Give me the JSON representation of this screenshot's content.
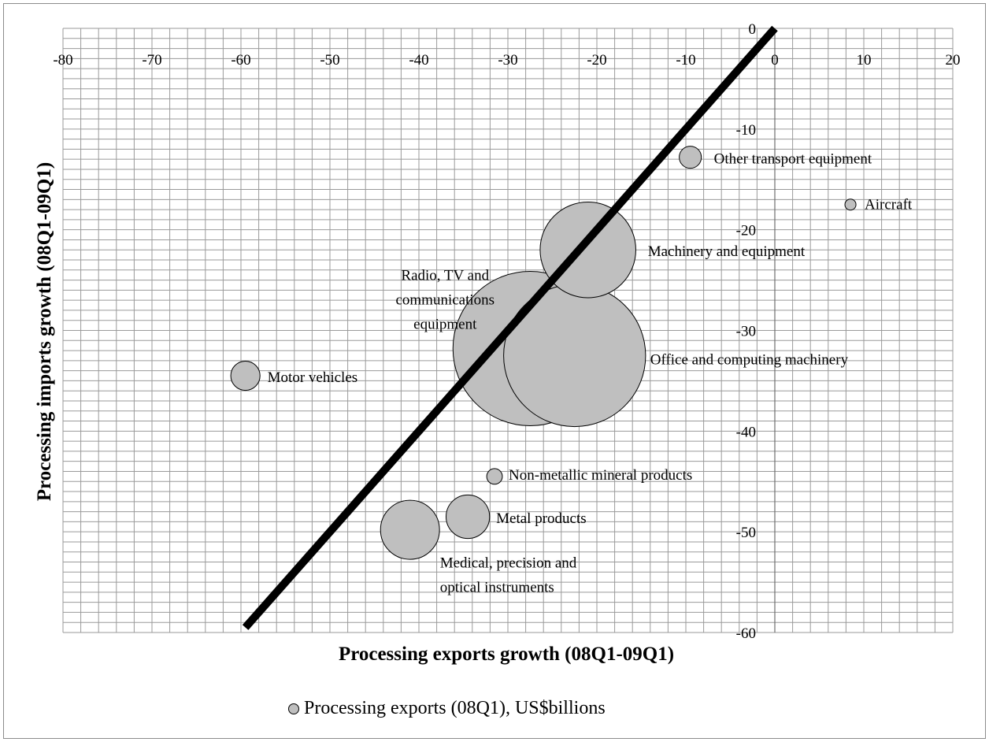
{
  "chart_data": {
    "type": "scatter",
    "subtype": "bubble",
    "xlabel": "Processing exports growth  (08Q1-09Q1)",
    "ylabel": "Processing imports  growth  (08Q1-09Q1)",
    "xlim": [
      -80,
      20
    ],
    "ylim": [
      -60,
      0
    ],
    "x_ticks": [
      "-80",
      "-70",
      "-60",
      "-50",
      "-40",
      "-30",
      "-20",
      "-10",
      "0",
      "10",
      "20"
    ],
    "y_ticks": [
      "0",
      "-10",
      "-20",
      "-30",
      "-40",
      "-50",
      "-60"
    ],
    "x_tick_values": [
      -80,
      -70,
      -60,
      -50,
      -40,
      -30,
      -20,
      -10,
      0,
      10,
      20
    ],
    "y_tick_values": [
      0,
      -10,
      -20,
      -30,
      -40,
      -50,
      -60
    ],
    "grid": true,
    "series": [
      {
        "name": "Processing exports (08Q1), US$billions",
        "color": "#bfbfbf",
        "points": [
          {
            "label": "Other transport equipment",
            "x": -9.5,
            "y": -12.8,
            "size": 0.8
          },
          {
            "label": "Aircraft",
            "x": 8.5,
            "y": -17.5,
            "size": 0.2
          },
          {
            "label": "Machinery and equipment",
            "x": -21,
            "y": -22,
            "size": 15
          },
          {
            "label": "Office  and computing machinery",
            "x": -22.5,
            "y": -32.5,
            "size": 33
          },
          {
            "label": "Radio, TV and\ncommunications\nequipment",
            "x": -27.5,
            "y": -31.8,
            "size": 39
          },
          {
            "label": "Motor vehicles",
            "x": -59.5,
            "y": -34.5,
            "size": 1.4
          },
          {
            "label": "Non-metallic  mineral  products",
            "x": -31.5,
            "y": -44.5,
            "size": 0.4
          },
          {
            "label": "Metal products",
            "x": -34.5,
            "y": -48.5,
            "size": 3.1
          },
          {
            "label": "Medical, precision and\noptical instruments",
            "x": -41,
            "y": -49.8,
            "size": 5.7
          }
        ]
      }
    ],
    "reference_line": {
      "from": [
        -59.5,
        -59.5
      ],
      "to": [
        0,
        0
      ],
      "color": "#000000"
    },
    "legend": {
      "position": "bottom-center",
      "text": "Processing exports (08Q1), US$billions"
    }
  }
}
